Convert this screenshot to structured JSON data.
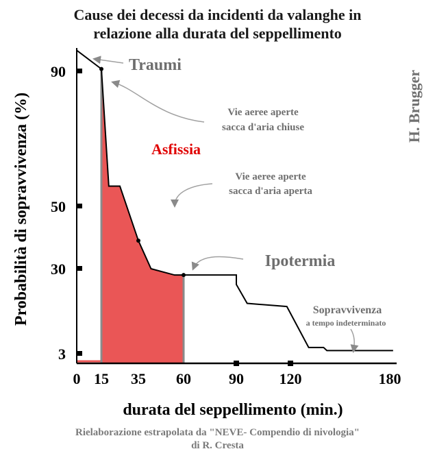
{
  "title_line1": "Cause dei decessi da incidenti da valanghe in",
  "title_line2": "relazione alla durata del seppellimento",
  "source_line1": "Rielaborazione estrapolata da \"NEVE- Compendio di nivologia\"",
  "source_line2": "di R. Cresta",
  "author": "H. Brugger",
  "colors": {
    "asphyxia_fill": "#ea5656",
    "curve": "#000000",
    "annotation_gray": "#6e6e6e",
    "annotation_red": "#e00000"
  },
  "chart_data": {
    "type": "line",
    "title": "Cause dei decessi da incidenti da valanghe in relazione alla durata del seppellimento",
    "xlabel": "durata del seppellimento (min.)",
    "ylabel": "Probabilità di sopravvivenza (%)",
    "x_ticks": [
      "0",
      "15",
      "35",
      "60",
      "90",
      "120",
      "180"
    ],
    "y_ticks": [
      "3",
      "30",
      "50",
      "90"
    ],
    "series": [
      {
        "points": [
          {
            "x": 0,
            "y": 99
          },
          {
            "x": 15,
            "y": 91
          },
          {
            "x": 19,
            "y": 56
          },
          {
            "x": 25,
            "y": 56
          },
          {
            "x": 35,
            "y": 39
          },
          {
            "x": 42,
            "y": 30
          },
          {
            "x": 55,
            "y": 28
          },
          {
            "x": 90,
            "y": 28
          },
          {
            "x": 90,
            "y": 25
          },
          {
            "x": 96,
            "y": 19
          },
          {
            "x": 118,
            "y": 18
          },
          {
            "x": 131,
            "y": 5
          },
          {
            "x": 140,
            "y": 5
          },
          {
            "x": 142,
            "y": 4
          },
          {
            "x": 182,
            "y": 4
          }
        ]
      }
    ],
    "shaded_region": {
      "x_start": 15,
      "x_end": 60,
      "label": "Asfissia"
    },
    "annotations": [
      {
        "text": "Traumi"
      },
      {
        "text": "Asfissia"
      },
      {
        "text": "Vie aeree aperte"
      },
      {
        "text": "sacca d'aria chiuse"
      },
      {
        "text": "Vie aeree aperte"
      },
      {
        "text": "sacca d'aria aperta"
      },
      {
        "text": "Ipotermia"
      },
      {
        "text": "Sopravvivenza"
      },
      {
        "text": "a tempo indeterminato"
      }
    ]
  }
}
